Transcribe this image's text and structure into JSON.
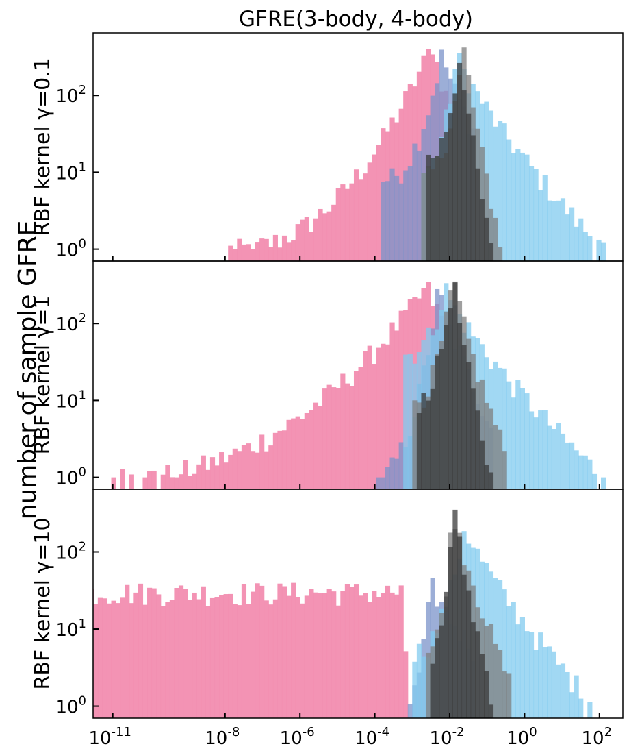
{
  "title": "GFRE(3-body, 4-body)",
  "shared_ylabel": "number of sample GFRE",
  "colors": {
    "pink": "#f28db0",
    "periwinkle": "#7b93c9",
    "light_blue": "#82cbef",
    "gray": "#7f7f7f",
    "dark": "#3a3a3a",
    "navy": "#4a5f99",
    "teal": "#1f6e93",
    "mid_blue": "#3a8bb5"
  },
  "chart_data": {
    "type": "bar",
    "title": "GFRE(3-body, 4-body)",
    "ylabel": "number of sample GFRE",
    "x_scale": "log",
    "y_scale": "log",
    "x_tick_labels": [
      {
        "base": "10",
        "exp": "-11",
        "value": 1e-11
      },
      {
        "base": "10",
        "exp": "-8",
        "value": 1e-08
      },
      {
        "base": "10",
        "exp": "-6",
        "value": 1e-06
      },
      {
        "base": "10",
        "exp": "-4",
        "value": 0.0001
      },
      {
        "base": "10",
        "exp": "-2",
        "value": 0.01
      },
      {
        "base": "10",
        "exp": "0",
        "value": 1
      },
      {
        "base": "10",
        "exp": "2",
        "value": 100
      }
    ],
    "y_tick_labels": [
      {
        "base": "10",
        "exp": "0",
        "value": 1
      },
      {
        "base": "10",
        "exp": "1",
        "value": 10
      },
      {
        "base": "10",
        "exp": "2",
        "value": 100
      }
    ],
    "ylim": [
      0.7,
      650
    ],
    "panels": [
      {
        "label": "RBF kernel γ=0.1",
        "series": [
          {
            "color_key": "pink",
            "peak_log10": -2.45,
            "peak": 480,
            "left": [
              -7.9,
              1
            ],
            "right": [
              -1.6,
              20
            ]
          },
          {
            "color_key": "periwinkle",
            "peak_log10": -2.2,
            "peak": 360,
            "left": [
              -3.8,
              8
            ],
            "right": [
              -1.3,
              30
            ]
          },
          {
            "color_key": "light_blue",
            "peak_log10": -1.8,
            "peak": 340,
            "left": [
              -2.8,
              10
            ],
            "right": [
              2.1,
              1
            ]
          },
          {
            "color_key": "gray",
            "peak_log10": -1.6,
            "peak": 430,
            "left": [
              -2.8,
              8
            ],
            "right": [
              -0.6,
              1
            ]
          },
          {
            "color_key": "dark",
            "peak_log10": -1.7,
            "peak": 410,
            "left": [
              -2.6,
              15
            ],
            "right": [
              -0.9,
              1
            ]
          }
        ]
      },
      {
        "label": "RBF kernel γ=1",
        "series": [
          {
            "color_key": "pink",
            "peak_log10": -2.6,
            "peak": 300,
            "left": [
              -11.0,
              1
            ],
            "right": [
              -1.6,
              40
            ]
          },
          {
            "color_key": "periwinkle",
            "peak_log10": -2.3,
            "peak": 300,
            "left": [
              -4.0,
              1
            ],
            "right": [
              -0.9,
              5
            ]
          },
          {
            "color_key": "light_blue",
            "peak_log10": -2.1,
            "peak": 280,
            "left": [
              -3.2,
              40
            ],
            "right": [
              2.1,
              1
            ]
          },
          {
            "color_key": "gray",
            "peak_log10": -1.9,
            "peak": 400,
            "left": [
              -3.0,
              10
            ],
            "right": [
              -0.5,
              2
            ]
          },
          {
            "color_key": "dark",
            "peak_log10": -1.9,
            "peak": 430,
            "left": [
              -2.9,
              10
            ],
            "right": [
              -0.9,
              1
            ]
          }
        ]
      },
      {
        "label": "RBF kernel γ=10",
        "series": [
          {
            "color_key": "pink",
            "plateau": [
              -12.5,
              -3.3
            ],
            "plateau_level": 30,
            "left": [
              -12.8,
              1
            ],
            "right": [
              -3.1,
              1
            ]
          },
          {
            "color_key": "periwinkle",
            "peak_log10": -2.5,
            "peak": 40,
            "left": [
              -3.2,
              1
            ],
            "right": [
              -1.3,
              5
            ]
          },
          {
            "color_key": "light_blue",
            "peak_log10": -1.6,
            "peak": 220,
            "left": [
              -3.0,
              5
            ],
            "right": [
              1.9,
              1
            ]
          },
          {
            "color_key": "gray",
            "peak_log10": -1.9,
            "peak": 400,
            "left": [
              -2.6,
              5
            ],
            "right": [
              -0.4,
              2
            ]
          },
          {
            "color_key": "dark",
            "peak_log10": -1.9,
            "peak": 450,
            "left": [
              -2.5,
              5
            ],
            "right": [
              -0.8,
              1
            ]
          }
        ]
      }
    ]
  }
}
